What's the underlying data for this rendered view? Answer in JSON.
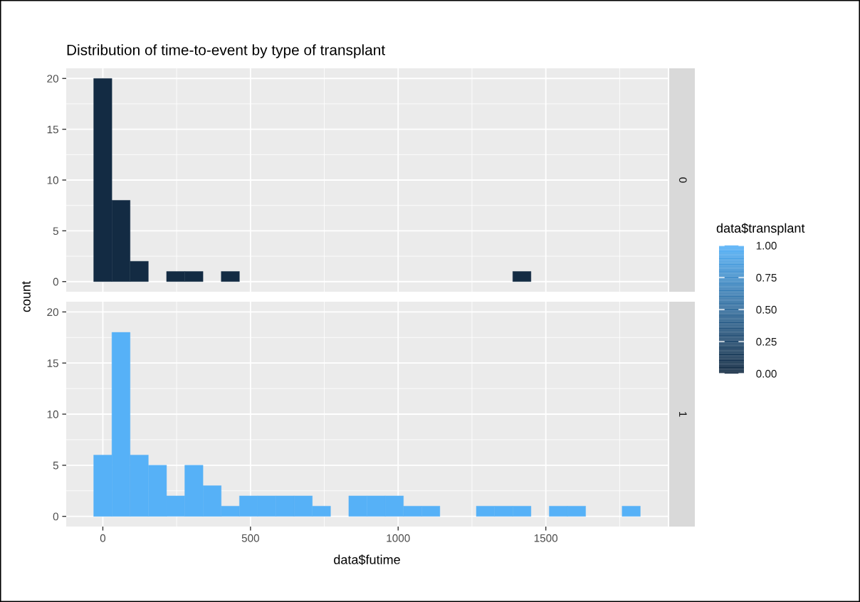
{
  "chart_data": [
    {
      "type": "histogram",
      "title": "Distribution of time-to-event by type of transplant",
      "ylabel": "count",
      "annotations": [
        "0"
      ],
      "bins": [
        -31,
        30.7,
        92.4,
        154.1,
        215.8,
        277.5,
        339.2,
        400.9,
        462.6,
        524.3,
        586,
        647.7,
        709.4,
        771.1,
        832.8,
        894.5,
        956.2,
        1017.9,
        1079.6,
        1141.3,
        1203,
        1264.7,
        1326.4,
        1388.1,
        1449.8,
        1511.5,
        1573.2,
        1634.9,
        1696.6,
        1758.3,
        1820
      ],
      "series": [
        {
          "color": "#132b43",
          "values": [
            20,
            8,
            2,
            0,
            1,
            1,
            0,
            1,
            0,
            0,
            0,
            0,
            0,
            0,
            0,
            0,
            0,
            0,
            0,
            0,
            0,
            0,
            0,
            1,
            0,
            0,
            0,
            0,
            0,
            0
          ]
        }
      ],
      "xlim": [
        -124,
        1913
      ],
      "ylim": [
        -1,
        21
      ],
      "xticks": [
        0,
        500,
        1000,
        1500
      ],
      "yticks": [
        0,
        5,
        10,
        15,
        20
      ],
      "grid": true,
      "tick_labels": "y"
    },
    {
      "type": "histogram",
      "xlabel": "data$futime",
      "annotations": [
        "1"
      ],
      "clabel": "data$transplant",
      "clim": [
        0,
        1
      ],
      "cticks": [
        {
          "value": 0,
          "label": "0.00"
        },
        {
          "value": 0.25,
          "label": "0.25"
        },
        {
          "value": 0.5,
          "label": "0.50"
        },
        {
          "value": 0.75,
          "label": "0.75"
        },
        {
          "value": 1,
          "label": "1.00"
        }
      ],
      "bins": [
        -31,
        30.7,
        92.4,
        154.1,
        215.8,
        277.5,
        339.2,
        400.9,
        462.6,
        524.3,
        586,
        647.7,
        709.4,
        771.1,
        832.8,
        894.5,
        956.2,
        1017.9,
        1079.6,
        1141.3,
        1203,
        1264.7,
        1326.4,
        1388.1,
        1449.8,
        1511.5,
        1573.2,
        1634.9,
        1696.6,
        1758.3,
        1820
      ],
      "series": [
        {
          "color": "#56b1f7",
          "values": [
            6,
            18,
            6,
            5,
            2,
            5,
            3,
            1,
            2,
            2,
            2,
            2,
            1,
            0,
            2,
            2,
            2,
            1,
            1,
            0,
            0,
            1,
            1,
            1,
            0,
            1,
            1,
            0,
            0,
            1
          ]
        }
      ],
      "xlim": [
        -124,
        1913
      ],
      "ylim": [
        -1,
        21
      ],
      "xticks": [
        0,
        500,
        1000,
        1500
      ],
      "yticks": [
        0,
        5,
        10,
        15,
        20
      ],
      "grid": true
    }
  ]
}
